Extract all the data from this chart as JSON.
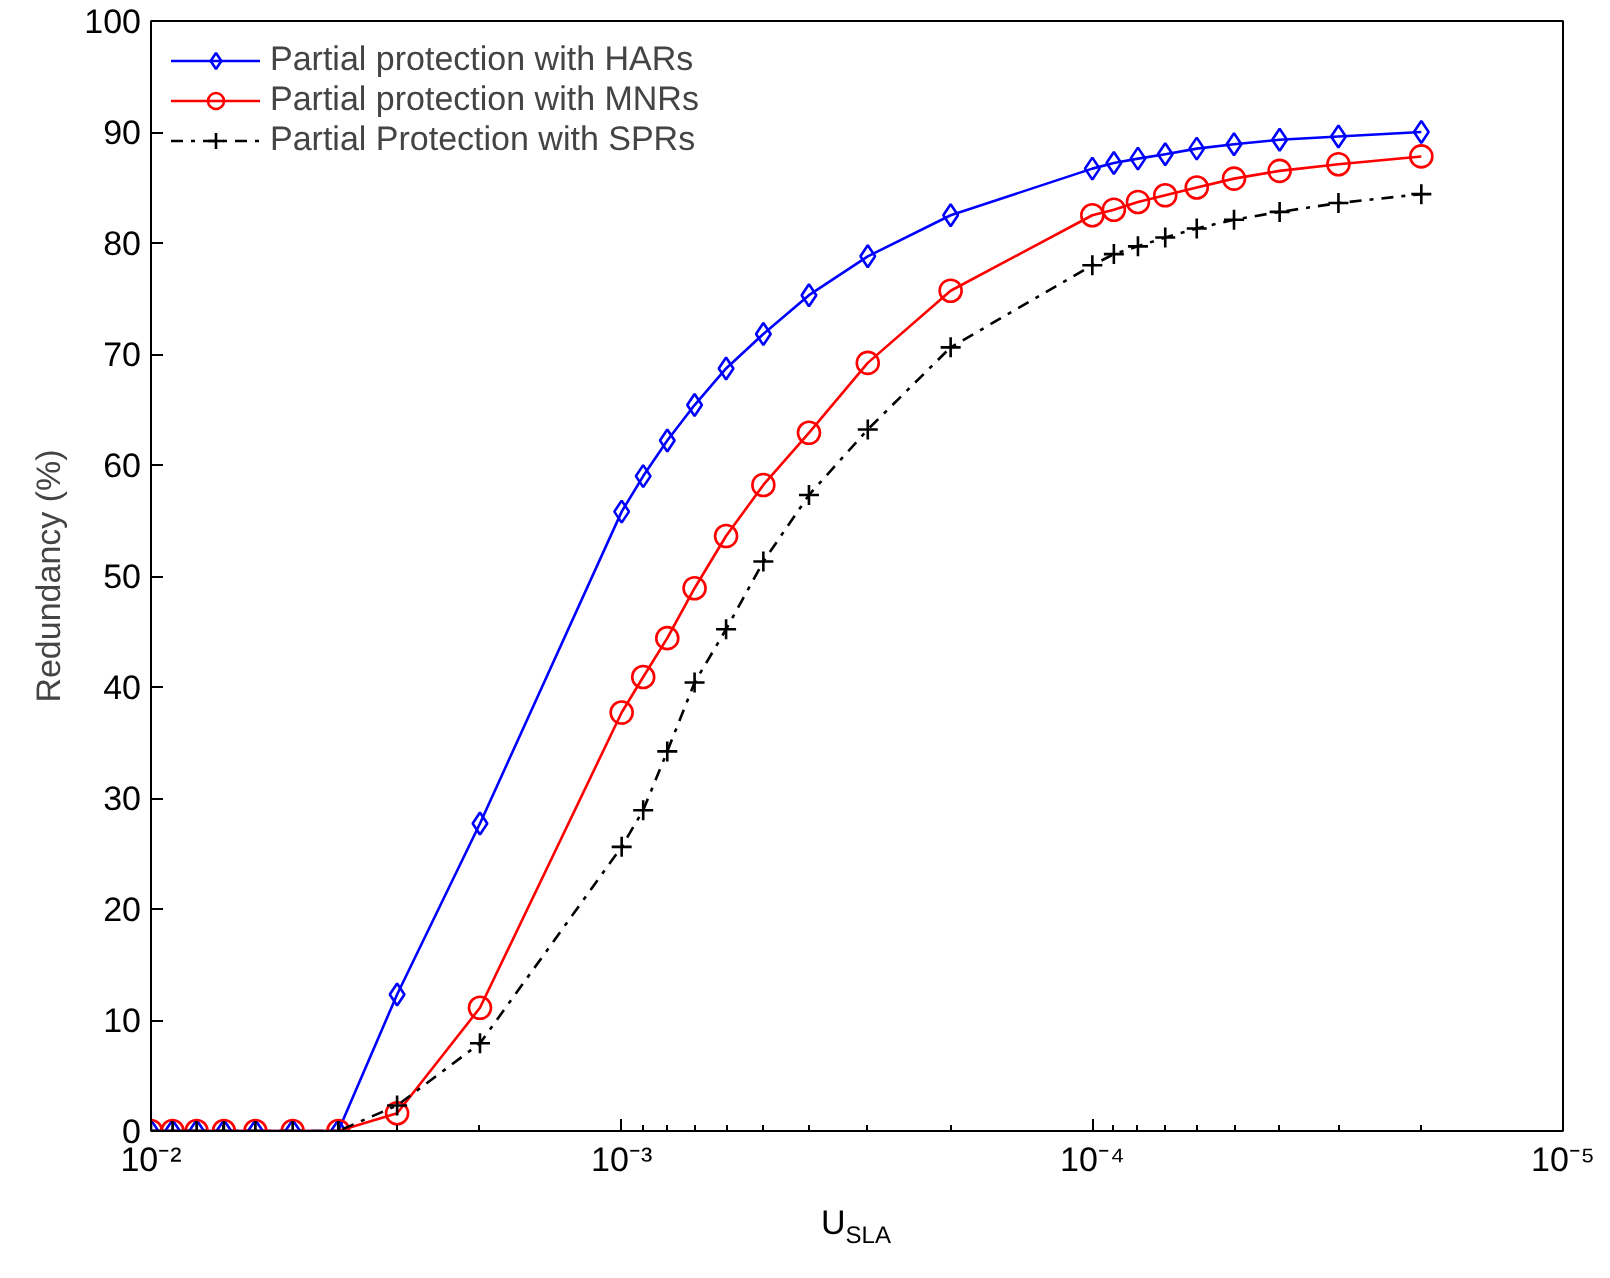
{
  "chart_data": {
    "type": "line",
    "xlabel": "U$_{SLA}$",
    "ylabel": "Redundancy (%)",
    "log": "x",
    "x": [
      0.01,
      0.009,
      0.008,
      0.007,
      0.006,
      0.005,
      0.004,
      0.003,
      0.002,
      0.001,
      0.0009,
      0.0008,
      0.0007,
      0.0006,
      0.0005,
      0.0004,
      0.0003,
      0.0002,
      0.0001,
      9e-05,
      8e-05,
      7e-05,
      6e-05,
      5e-05,
      4e-05,
      3e-05,
      2e-05
    ],
    "series": [
      {
        "name": "Partial protection with HARs",
        "color": "#0000ff",
        "marker": "diamond",
        "line_style": "solid",
        "values": [
          0,
          0,
          0,
          0,
          0,
          0,
          0,
          12.3,
          27.7,
          55.8,
          59.0,
          62.2,
          65.4,
          68.7,
          71.8,
          75.3,
          78.8,
          82.5,
          86.7,
          87.2,
          87.6,
          88.0,
          88.5,
          88.9,
          89.3,
          89.6,
          90.0
        ]
      },
      {
        "name": "Partial protection with MNRs",
        "color": "#ff0000",
        "marker": "circle",
        "line_style": "solid",
        "values": [
          0,
          0,
          0,
          0,
          0,
          0,
          0,
          1.6,
          11.1,
          37.7,
          40.9,
          44.4,
          48.9,
          53.6,
          58.2,
          62.9,
          69.2,
          75.7,
          82.5,
          83.0,
          83.7,
          84.3,
          85.0,
          85.8,
          86.5,
          87.1,
          87.8
        ]
      },
      {
        "name": "Partial Protection with SPRs",
        "color": "#000000",
        "marker": "cross",
        "line_style": "dashdot",
        "values": [
          0,
          0,
          0,
          0,
          0,
          0,
          0,
          2.3,
          7.9,
          25.6,
          28.9,
          34.2,
          40.4,
          45.2,
          51.3,
          57.3,
          63.2,
          70.6,
          78.0,
          79.0,
          79.7,
          80.5,
          81.3,
          82.1,
          82.8,
          83.6,
          84.4
        ]
      }
    ],
    "xlim": [
      0.01,
      1e-05
    ],
    "xticks": [
      {
        "value": 0.01,
        "label": "10⁻²"
      },
      {
        "value": 0.001,
        "label": "10⁻³"
      },
      {
        "value": 0.0001,
        "label": "10⁻⁴"
      },
      {
        "value": 1e-05,
        "label": "10⁻⁵"
      }
    ],
    "ylim": [
      0,
      100
    ],
    "yticks": [
      0,
      10,
      20,
      30,
      40,
      50,
      60,
      70,
      80,
      90,
      100
    ],
    "grid": false,
    "legend": "top left"
  }
}
